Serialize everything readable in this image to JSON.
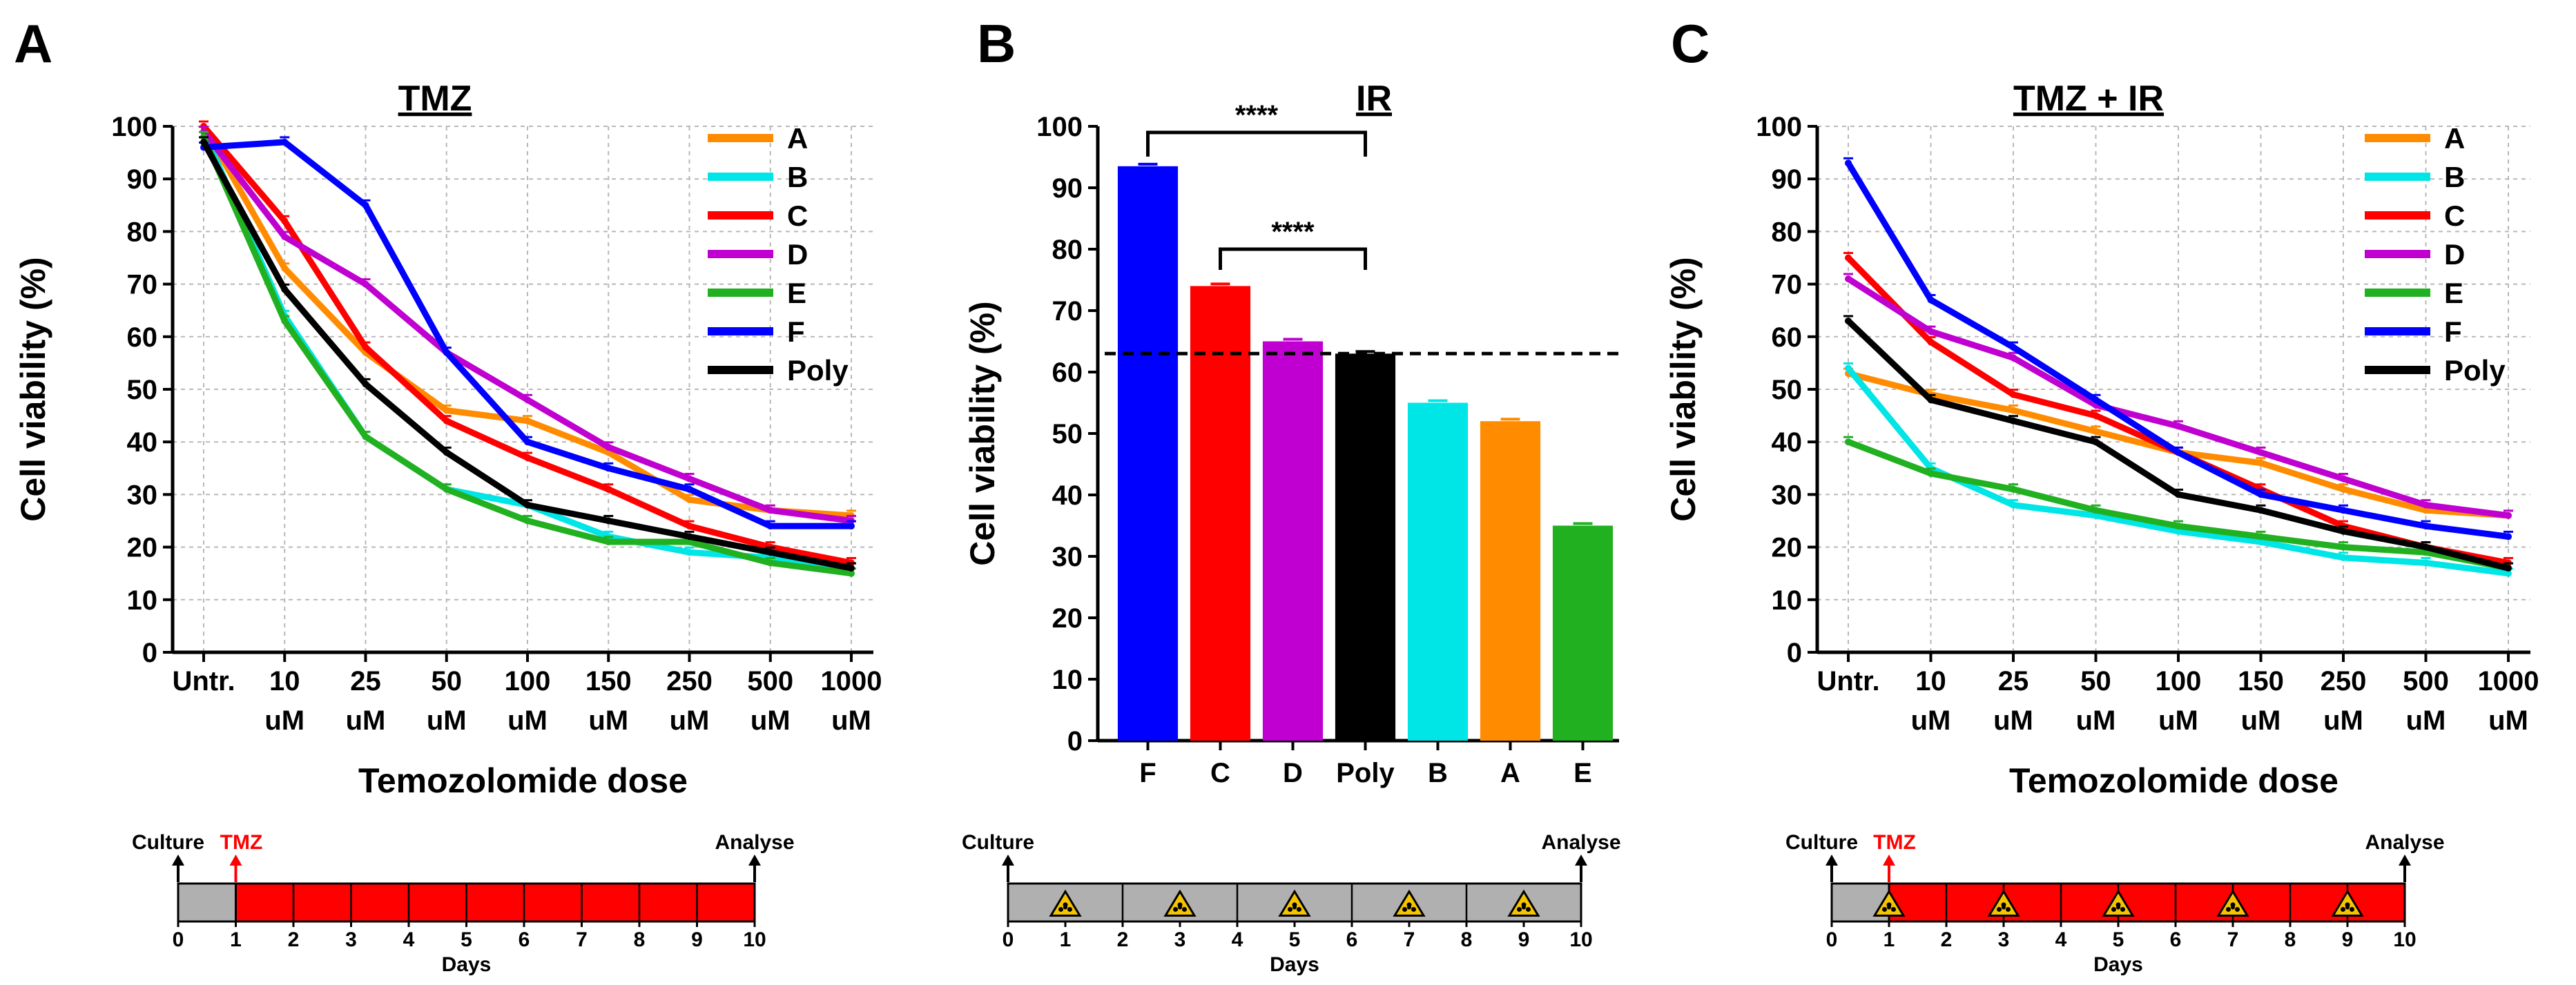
{
  "chart_data": [
    {
      "panel": "A",
      "type": "line",
      "title": "TMZ",
      "xlabel": "Temozolomide dose",
      "ylabel": "Cell viability (%)",
      "ylim": [
        0,
        100
      ],
      "yticks": [
        0,
        10,
        20,
        30,
        40,
        50,
        60,
        70,
        80,
        90,
        100
      ],
      "grid": true,
      "legend_position": "top-right",
      "categories": [
        [
          "Untr."
        ],
        [
          "10",
          "uM"
        ],
        [
          "25",
          "uM"
        ],
        [
          "50",
          "uM"
        ],
        [
          "100",
          "uM"
        ],
        [
          "150",
          "uM"
        ],
        [
          "250",
          "uM"
        ],
        [
          "500",
          "uM"
        ],
        [
          "1000",
          "uM"
        ]
      ],
      "series": [
        {
          "name": "A",
          "color": "#ff8c00",
          "values": [
            100,
            73,
            57,
            46,
            44,
            38,
            29,
            27,
            26
          ]
        },
        {
          "name": "B",
          "color": "#00e5e5",
          "values": [
            99,
            64,
            41,
            31,
            28,
            22,
            19,
            18,
            16
          ]
        },
        {
          "name": "C",
          "color": "#ff0000",
          "values": [
            100,
            82,
            58,
            44,
            37,
            31,
            24,
            20,
            17
          ]
        },
        {
          "name": "D",
          "color": "#c000d0",
          "values": [
            99,
            79,
            70,
            57,
            48,
            39,
            33,
            27,
            25
          ]
        },
        {
          "name": "E",
          "color": "#20b020",
          "values": [
            98,
            63,
            41,
            31,
            25,
            21,
            21,
            17,
            15
          ]
        },
        {
          "name": "F",
          "color": "#0000ff",
          "values": [
            96,
            97,
            85,
            57,
            40,
            35,
            31,
            24,
            24
          ]
        },
        {
          "name": "Poly",
          "color": "#000000",
          "values": [
            97,
            69,
            51,
            38,
            28,
            25,
            22,
            19,
            16
          ]
        }
      ]
    },
    {
      "panel": "B",
      "type": "bar",
      "title": "IR",
      "xlabel": "",
      "ylabel": "Cell  viability (%)",
      "ylim": [
        0,
        100
      ],
      "yticks": [
        0,
        10,
        20,
        30,
        40,
        50,
        60,
        70,
        80,
        90,
        100
      ],
      "grid": false,
      "reference_line": 63,
      "categories": [
        "F",
        "C",
        "D",
        "Poly",
        "B",
        "A",
        "E"
      ],
      "values": [
        93.5,
        74,
        65,
        63,
        55,
        52,
        35
      ],
      "colors": [
        "#0000ff",
        "#ff0000",
        "#c000d0",
        "#000000",
        "#00e5e5",
        "#ff8c00",
        "#20b020"
      ],
      "significance": [
        {
          "from": "F",
          "to": "Poly",
          "label": "****"
        },
        {
          "from": "C",
          "to": "Poly",
          "label": "****"
        }
      ]
    },
    {
      "panel": "C",
      "type": "line",
      "title": "TMZ + IR",
      "xlabel": "Temozolomide dose",
      "ylabel": "Cell viability (%)",
      "ylim": [
        0,
        100
      ],
      "yticks": [
        0,
        10,
        20,
        30,
        40,
        50,
        60,
        70,
        80,
        90,
        100
      ],
      "grid": true,
      "legend_position": "top-right",
      "categories": [
        [
          "Untr."
        ],
        [
          "10",
          "uM"
        ],
        [
          "25",
          "uM"
        ],
        [
          "50",
          "uM"
        ],
        [
          "100",
          "uM"
        ],
        [
          "150",
          "uM"
        ],
        [
          "250",
          "uM"
        ],
        [
          "500",
          "uM"
        ],
        [
          "1000",
          "uM"
        ]
      ],
      "series": [
        {
          "name": "A",
          "color": "#ff8c00",
          "values": [
            53,
            49,
            46,
            42,
            38,
            36,
            31,
            27,
            26
          ]
        },
        {
          "name": "B",
          "color": "#00e5e5",
          "values": [
            54,
            35,
            28,
            26,
            23,
            21,
            18,
            17,
            15
          ]
        },
        {
          "name": "C",
          "color": "#ff0000",
          "values": [
            75,
            59,
            49,
            45,
            38,
            31,
            24,
            20,
            17
          ]
        },
        {
          "name": "D",
          "color": "#c000d0",
          "values": [
            71,
            61,
            56,
            47,
            43,
            38,
            33,
            28,
            26
          ]
        },
        {
          "name": "E",
          "color": "#20b020",
          "values": [
            40,
            34,
            31,
            27,
            24,
            22,
            20,
            19,
            16
          ]
        },
        {
          "name": "F",
          "color": "#0000ff",
          "values": [
            93,
            67,
            58,
            48,
            38,
            30,
            27,
            24,
            22
          ]
        },
        {
          "name": "Poly",
          "color": "#000000",
          "values": [
            63,
            48,
            44,
            40,
            30,
            27,
            23,
            20,
            16
          ]
        }
      ]
    }
  ],
  "timelines": [
    {
      "panel": "A",
      "start_label": "Culture",
      "end_label": "Analyse",
      "treatment_label": "TMZ",
      "treatment_day": 1,
      "ir_days": [],
      "xlabel": "Days",
      "days": [
        "0",
        "1",
        "2",
        "3",
        "4",
        "5",
        "6",
        "7",
        "8",
        "9",
        "10"
      ]
    },
    {
      "panel": "B",
      "start_label": "Culture",
      "end_label": "Analyse",
      "treatment_label": "",
      "treatment_day": null,
      "ir_days": [
        1,
        3,
        5,
        7,
        9
      ],
      "xlabel": "Days",
      "days": [
        "0",
        "1",
        "2",
        "3",
        "4",
        "5",
        "6",
        "7",
        "8",
        "9",
        "10"
      ]
    },
    {
      "panel": "C",
      "start_label": "Culture",
      "end_label": "Analyse",
      "treatment_label": "TMZ",
      "treatment_day": 1,
      "ir_days": [
        1,
        3,
        5,
        7,
        9
      ],
      "xlabel": "Days",
      "days": [
        "0",
        "1",
        "2",
        "3",
        "4",
        "5",
        "6",
        "7",
        "8",
        "9",
        "10"
      ]
    }
  ]
}
